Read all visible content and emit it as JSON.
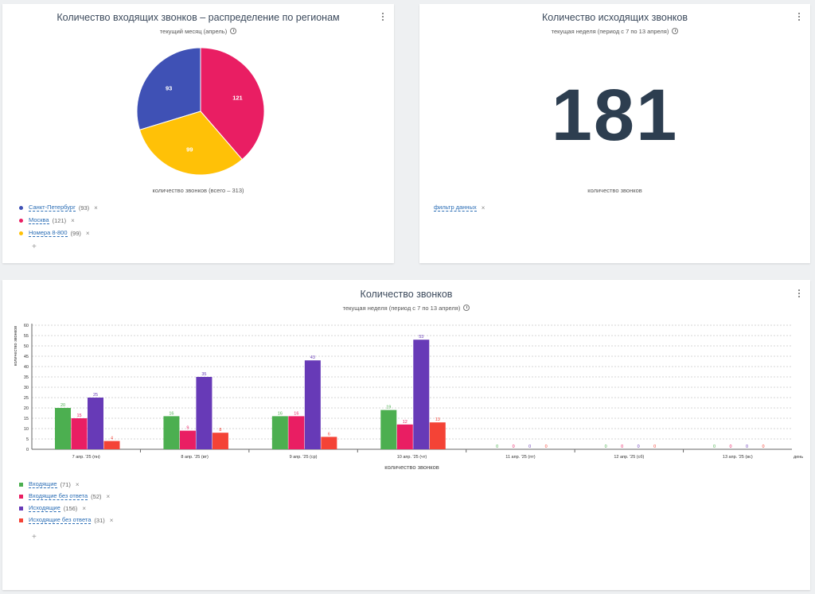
{
  "pie_card": {
    "title": "Количество входящих звонков – распределение по регионам",
    "subtitle": "текущий месяц (апрель)",
    "footer_label": "количество звонков  (всего – 313)",
    "legend": [
      {
        "label": "Санкт-Петербург",
        "count": "(93)",
        "color": "#3f51b5"
      },
      {
        "label": "Москва",
        "count": "(121)",
        "color": "#e91e63"
      },
      {
        "label": "Номера 8-800",
        "count": "(99)",
        "color": "#ffc107"
      }
    ],
    "remove_glyph": "×",
    "add_glyph": "+"
  },
  "number_card": {
    "title": "Количество исходящих звонков",
    "subtitle": "текущая неделя (период с 7 по 13 апреля)",
    "value": "181",
    "footer_label": "количество звонков",
    "filter_label": "фильтр данных",
    "remove_glyph": "×"
  },
  "bar_card": {
    "title": "Количество звонков",
    "subtitle": "текущая неделя (период с 7 по 13 апреля)",
    "legend": [
      {
        "label": "Входящие",
        "count": "(71)",
        "color": "#4caf50"
      },
      {
        "label": "Входящие без ответа",
        "count": "(52)",
        "color": "#e91e63"
      },
      {
        "label": "Исходящие",
        "count": "(156)",
        "color": "#673ab7"
      },
      {
        "label": "Исходящие без ответа",
        "count": "(31)",
        "color": "#f44336"
      }
    ],
    "remove_glyph": "×",
    "add_glyph": "+"
  },
  "chart_data": [
    {
      "type": "pie",
      "title": "Количество входящих звонков – распределение по регионам",
      "subtitle": "текущий месяц (апрель)",
      "xlabel": "количество звонков  (всего – 313)",
      "categories": [
        "Санкт-Петербург",
        "Москва",
        "Номера 8-800"
      ],
      "values": [
        93,
        121,
        99
      ],
      "colors": [
        "#3f51b5",
        "#e91e63",
        "#ffc107"
      ],
      "legend": "bottom-left"
    },
    {
      "type": "bar",
      "title": "Количество звонков",
      "subtitle": "текущая неделя (период с 7 по 13 апреля)",
      "xlabel": "количество звонков",
      "ylabel": "количество звонков",
      "x_unit_label": "день",
      "categories": [
        "7 апр. '25 (пн)",
        "8 апр. '25 (вт)",
        "9 апр. '25 (ср)",
        "10 апр. '25 (чт)",
        "11 апр. '25 (пт)",
        "12 апр. '25 (сб)",
        "13 апр. '25 (вс)"
      ],
      "series": [
        {
          "name": "Входящие",
          "color": "#4caf50",
          "values": [
            20,
            16,
            16,
            19,
            0,
            0,
            0
          ]
        },
        {
          "name": "Входящие без ответа",
          "color": "#e91e63",
          "values": [
            15,
            9,
            16,
            12,
            0,
            0,
            0
          ]
        },
        {
          "name": "Исходящие",
          "color": "#673ab7",
          "values": [
            25,
            35,
            43,
            53,
            0,
            0,
            0
          ]
        },
        {
          "name": "Исходящие без ответа",
          "color": "#f44336",
          "values": [
            4,
            8,
            6,
            13,
            0,
            0,
            0
          ]
        }
      ],
      "ylim": [
        0,
        60
      ],
      "yticks": [
        0,
        5,
        10,
        15,
        20,
        25,
        30,
        35,
        40,
        45,
        50,
        55,
        60
      ],
      "grid": true,
      "legend": "bottom-left"
    }
  ]
}
